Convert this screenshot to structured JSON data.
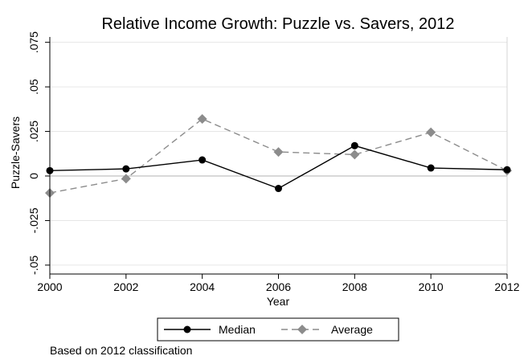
{
  "chart_data": {
    "type": "line",
    "title": "Relative Income Growth: Puzzle vs. Savers, 2012",
    "xlabel": "Year",
    "ylabel": "Puzzle-Savers",
    "x": [
      2000,
      2002,
      2004,
      2006,
      2008,
      2010,
      2012
    ],
    "xticks": [
      2000,
      2002,
      2004,
      2006,
      2008,
      2010,
      2012
    ],
    "xtick_labels": [
      "2000",
      "2002",
      "2004",
      "2006",
      "2008",
      "2010",
      "2012"
    ],
    "xlim": [
      2000,
      2012
    ],
    "yticks": [
      -0.05,
      -0.025,
      0,
      0.025,
      0.05,
      0.075
    ],
    "ytick_labels": [
      "-.05",
      "-.025",
      "0",
      ".025",
      ".05",
      ".075"
    ],
    "ylim": [
      -0.055,
      0.078
    ],
    "grid": true,
    "reference_line": {
      "axis": "x",
      "value": 2012
    },
    "series": [
      {
        "name": "Median",
        "values": [
          0.003,
          0.004,
          0.009,
          -0.007,
          0.017,
          0.0045,
          0.0035
        ],
        "color": "#000000",
        "marker": "circle",
        "dash": "solid"
      },
      {
        "name": "Average",
        "values": [
          -0.0095,
          -0.0015,
          0.032,
          0.0135,
          0.012,
          0.0245,
          0.003
        ],
        "color": "#8c8c8c",
        "marker": "diamond",
        "dash": "dashed"
      }
    ],
    "legend": {
      "placement": "bottom"
    },
    "note": "Based on 2012 classification"
  }
}
